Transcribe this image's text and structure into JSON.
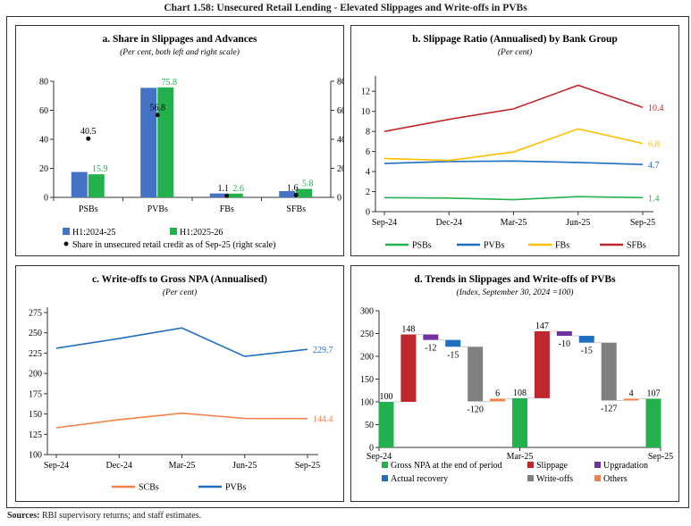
{
  "title": "Chart 1.58: Unsecured Retail Lending - Elevated Slippages and Write-offs in PVBs",
  "sources": {
    "label": "Sources:",
    "text": " RBI supervisory returns; and staff estimates."
  },
  "chart_data": [
    {
      "id": "a",
      "type": "bar",
      "title": "a. Share in Slippages and Advances",
      "subtitle": "(Per cent, both left and right scale)",
      "categories": [
        "PSBs",
        "PVBs",
        "FBs",
        "SFBs"
      ],
      "series": [
        {
          "name": "H1:2024-25",
          "color": "#4472c4",
          "values": [
            17.5,
            75.5,
            2.7,
            4.3
          ]
        },
        {
          "name": "H1:2025-26",
          "color": "#22b14c",
          "values": [
            15.9,
            75.8,
            2.6,
            5.8
          ],
          "labels": [
            "15.9",
            "75.8",
            "2.6",
            "5.8"
          ]
        }
      ],
      "scatter": {
        "name": "Share in unsecured retail credit as of Sep-25 (right scale)",
        "color": "#111",
        "values": [
          40.5,
          56.8,
          1.1,
          1.6
        ],
        "labels": [
          "40.5",
          "56.8",
          "1.1",
          "1.6"
        ]
      },
      "ylim": [
        0,
        80
      ],
      "yticks": [
        0,
        20,
        40,
        60,
        80
      ],
      "y2lim": [
        0,
        80
      ],
      "legend": "bottom"
    },
    {
      "id": "b",
      "type": "line",
      "title": "b. Slippage Ratio (Annualised) by Bank Group",
      "subtitle": "(Per cent)",
      "x": [
        "Sep-24",
        "Dec-24",
        "Mar-25",
        "Jun-25",
        "Sep-25"
      ],
      "series": [
        {
          "name": "PSBs",
          "color": "#22b14c",
          "values": [
            1.4,
            1.35,
            1.2,
            1.5,
            1.4
          ],
          "end_label": "1.4"
        },
        {
          "name": "PVBs",
          "color": "#1f6fbf",
          "values": [
            4.8,
            5.0,
            5.05,
            4.9,
            4.7
          ],
          "end_label": "4.7"
        },
        {
          "name": "FBs",
          "color": "#ffc000",
          "values": [
            5.3,
            5.1,
            5.95,
            8.25,
            6.8
          ],
          "end_label": "6.8"
        },
        {
          "name": "SFBs",
          "color": "#c0272d",
          "values": [
            8.0,
            9.2,
            10.25,
            12.6,
            10.4
          ],
          "end_label": "10.4"
        }
      ],
      "ylim": [
        0,
        13
      ],
      "yticks": [
        0,
        2,
        4,
        6,
        8,
        10,
        12
      ],
      "legend": "bottom"
    },
    {
      "id": "c",
      "type": "line",
      "title": "c. Write-offs to Gross NPA (Annualised)",
      "subtitle": "(Per cent)",
      "x": [
        "Sep-24",
        "Dec-24",
        "Mar-25",
        "Jun-25",
        "Sep-25"
      ],
      "series": [
        {
          "name": "SCBs",
          "color": "#f4814a",
          "values": [
            133,
            143,
            151,
            144.5,
            144.4
          ],
          "end_label": "144.4"
        },
        {
          "name": "PVBs",
          "color": "#1f6fbf",
          "values": [
            231,
            243,
            256,
            221,
            229.7
          ],
          "end_label": "229.7"
        }
      ],
      "ylim": [
        100,
        275
      ],
      "yticks": [
        100,
        125,
        150,
        175,
        200,
        225,
        250,
        275
      ],
      "legend": "bottom"
    },
    {
      "id": "d",
      "type": "bar",
      "subtype": "waterfall",
      "title": "d. Trends in Slippages and Write-offs of PVBs",
      "subtitle": "(Index, September 30, 2024 =100)",
      "xticks": [
        "Sep-24",
        "Mar-25",
        "Sep-25"
      ],
      "categories_legend": [
        {
          "name": "Gross NPA at the end of period",
          "color": "#22b14c"
        },
        {
          "name": "Slippage",
          "color": "#c0272d"
        },
        {
          "name": "Upgradation",
          "color": "#7030a0"
        },
        {
          "name": "Actual recovery",
          "color": "#1f6fbf"
        },
        {
          "name": "Write-offs",
          "color": "#808080"
        },
        {
          "name": "Others",
          "color": "#f4814a"
        }
      ],
      "bars": [
        {
          "k": 0,
          "from": 0,
          "to": 100,
          "label": "100"
        },
        {
          "k": 1,
          "from": 100,
          "to": 248,
          "label": "148"
        },
        {
          "k": 2,
          "from": 248,
          "to": 236,
          "label": "-12"
        },
        {
          "k": 3,
          "from": 236,
          "to": 221,
          "label": "-15"
        },
        {
          "k": 4,
          "from": 221,
          "to": 101,
          "label": "-120"
        },
        {
          "k": 5,
          "from": 101,
          "to": 107,
          "label": "6"
        },
        {
          "k": 0,
          "from": 0,
          "to": 108,
          "label": "108"
        },
        {
          "k": 1,
          "from": 108,
          "to": 255,
          "label": "147"
        },
        {
          "k": 2,
          "from": 255,
          "to": 245,
          "label": "-10"
        },
        {
          "k": 3,
          "from": 245,
          "to": 230,
          "label": "-15"
        },
        {
          "k": 4,
          "from": 230,
          "to": 103,
          "label": "-127"
        },
        {
          "k": 5,
          "from": 103,
          "to": 107,
          "label": "4"
        },
        {
          "k": 0,
          "from": 0,
          "to": 107,
          "label": "107"
        }
      ],
      "ylim": [
        0,
        300
      ],
      "yticks": [
        0,
        50,
        100,
        150,
        200,
        250,
        300
      ],
      "legend": "bottom"
    }
  ]
}
